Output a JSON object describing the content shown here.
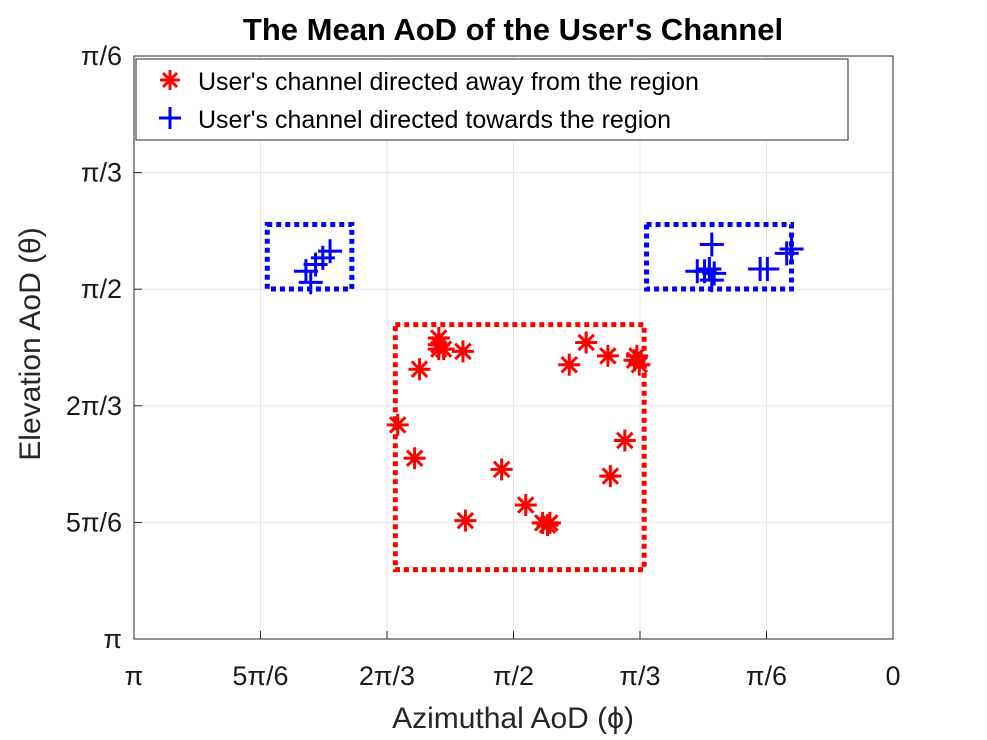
{
  "chart_data": {
    "type": "scatter",
    "title": "The Mean AoD of the User's Channel",
    "xlabel": "Azimuthal AoD (ϕ)",
    "ylabel": "Elevation AoD (θ)",
    "xlim": [
      3.14159,
      0
    ],
    "ylim": [
      0.5236,
      3.14159
    ],
    "x_reversed": true,
    "y_reversed": true,
    "grid": true,
    "legend_position": "top",
    "xticks": [
      {
        "value": 3.14159,
        "label": "π"
      },
      {
        "value": 2.61799,
        "label": "5π/6"
      },
      {
        "value": 2.0944,
        "label": "2π/3"
      },
      {
        "value": 1.5708,
        "label": "π/2"
      },
      {
        "value": 1.0472,
        "label": "π/3"
      },
      {
        "value": 0.5236,
        "label": "π/6"
      },
      {
        "value": 0,
        "label": "0"
      }
    ],
    "yticks": [
      {
        "value": 0.5236,
        "label": "π/6"
      },
      {
        "value": 1.0472,
        "label": "π/3"
      },
      {
        "value": 1.5708,
        "label": "π/2"
      },
      {
        "value": 2.0944,
        "label": "2π/3"
      },
      {
        "value": 2.61799,
        "label": "5π/6"
      },
      {
        "value": 3.14159,
        "label": "π"
      }
    ],
    "series": [
      {
        "name": "User's channel directed away from the region",
        "marker": "asterisk",
        "color": "#ff0000",
        "points": [
          [
            2.05,
            2.18
          ],
          [
            1.98,
            2.33
          ],
          [
            1.96,
            1.93
          ],
          [
            1.88,
            1.79
          ],
          [
            1.88,
            1.84
          ],
          [
            1.88,
            1.82
          ],
          [
            1.86,
            1.84
          ],
          [
            1.78,
            1.85
          ],
          [
            1.77,
            2.61
          ],
          [
            1.62,
            2.38
          ],
          [
            1.52,
            2.54
          ],
          [
            1.45,
            2.62
          ],
          [
            1.43,
            2.63
          ],
          [
            1.42,
            2.62
          ],
          [
            1.34,
            1.91
          ],
          [
            1.27,
            1.81
          ],
          [
            1.18,
            1.87
          ],
          [
            1.17,
            2.41
          ],
          [
            1.11,
            2.25
          ],
          [
            1.07,
            1.89
          ],
          [
            1.06,
            1.87
          ],
          [
            1.05,
            1.91
          ]
        ]
      },
      {
        "name": "User's channel directed towards the region",
        "marker": "plus",
        "color": "#0000ff",
        "points": [
          [
            2.43,
            1.49
          ],
          [
            2.41,
            1.54
          ],
          [
            2.39,
            1.46
          ],
          [
            2.36,
            1.43
          ],
          [
            2.33,
            1.4
          ],
          [
            0.81,
            1.49
          ],
          [
            0.78,
            1.49
          ],
          [
            0.76,
            1.48
          ],
          [
            0.75,
            1.37
          ],
          [
            0.75,
            1.53
          ],
          [
            0.74,
            1.5
          ],
          [
            0.55,
            1.48
          ],
          [
            0.52,
            1.48
          ],
          [
            0.44,
            1.41
          ],
          [
            0.42,
            1.39
          ]
        ]
      }
    ],
    "regions": [
      {
        "name": "away",
        "color": "#ff0000",
        "x_range": [
          2.06,
          1.03
        ],
        "y_range": [
          1.73,
          2.83
        ]
      },
      {
        "name": "towards-left",
        "color": "#0000ff",
        "x_range": [
          2.59,
          2.24
        ],
        "y_range": [
          1.28,
          1.57
        ]
      },
      {
        "name": "towards-right",
        "color": "#0000ff",
        "x_range": [
          1.02,
          0.42
        ],
        "y_range": [
          1.28,
          1.57
        ]
      }
    ]
  }
}
